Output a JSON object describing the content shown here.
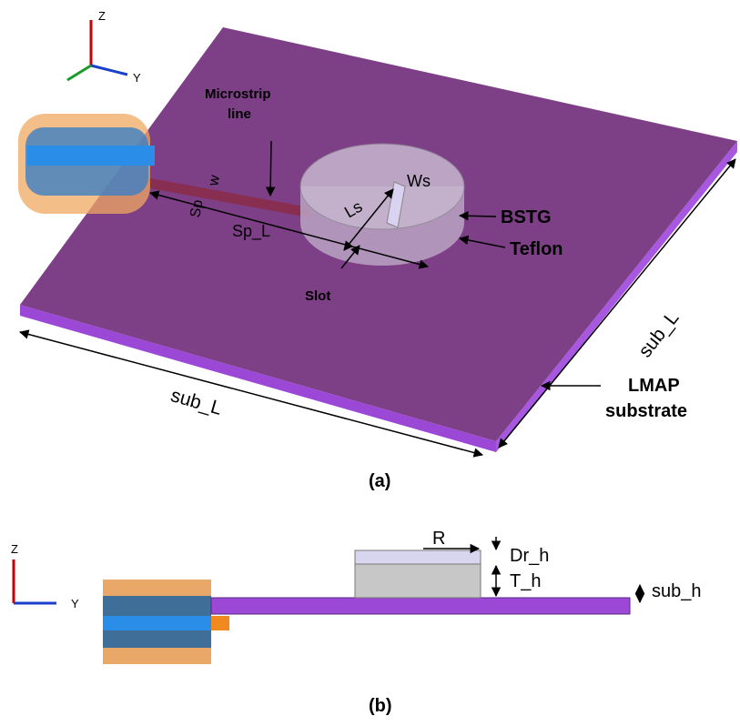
{
  "panel_a": {
    "axes": {
      "z": "Z",
      "y": "Y"
    },
    "labels": {
      "microstrip": [
        "Microstrip",
        "line"
      ],
      "w": "w",
      "sp": "Sp",
      "sp_l": "Sp_L",
      "ls": "Ls",
      "ws": "Ws",
      "bstg": "BSTG",
      "teflon": "Teflon",
      "slot": "Slot",
      "sub_l_front": "sub_L",
      "sub_l_side": "sub_L",
      "substrate": [
        "LMAP",
        "substrate"
      ]
    },
    "caption": "(a)"
  },
  "panel_b": {
    "axes": {
      "z": "Z",
      "y": "Y"
    },
    "labels": {
      "r": "R",
      "dr_h": "Dr_h",
      "t_h": "T_h",
      "sub_h": "sub_h"
    },
    "caption": "(b)"
  }
}
